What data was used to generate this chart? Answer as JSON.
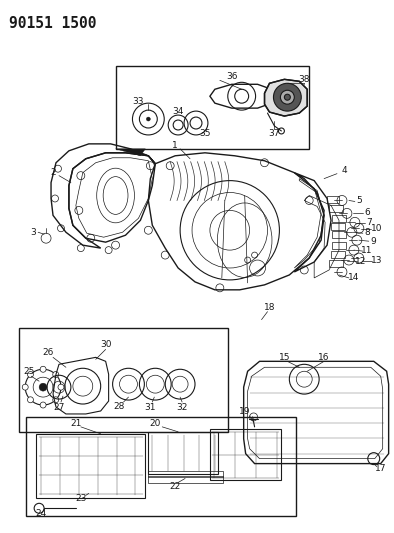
{
  "title": "90151 1500",
  "bg_color": "#ffffff",
  "line_color": "#1a1a1a",
  "fig_width": 3.94,
  "fig_height": 5.33,
  "dpi": 100,
  "title_fontsize": 10.5,
  "label_fontsize": 6.5
}
